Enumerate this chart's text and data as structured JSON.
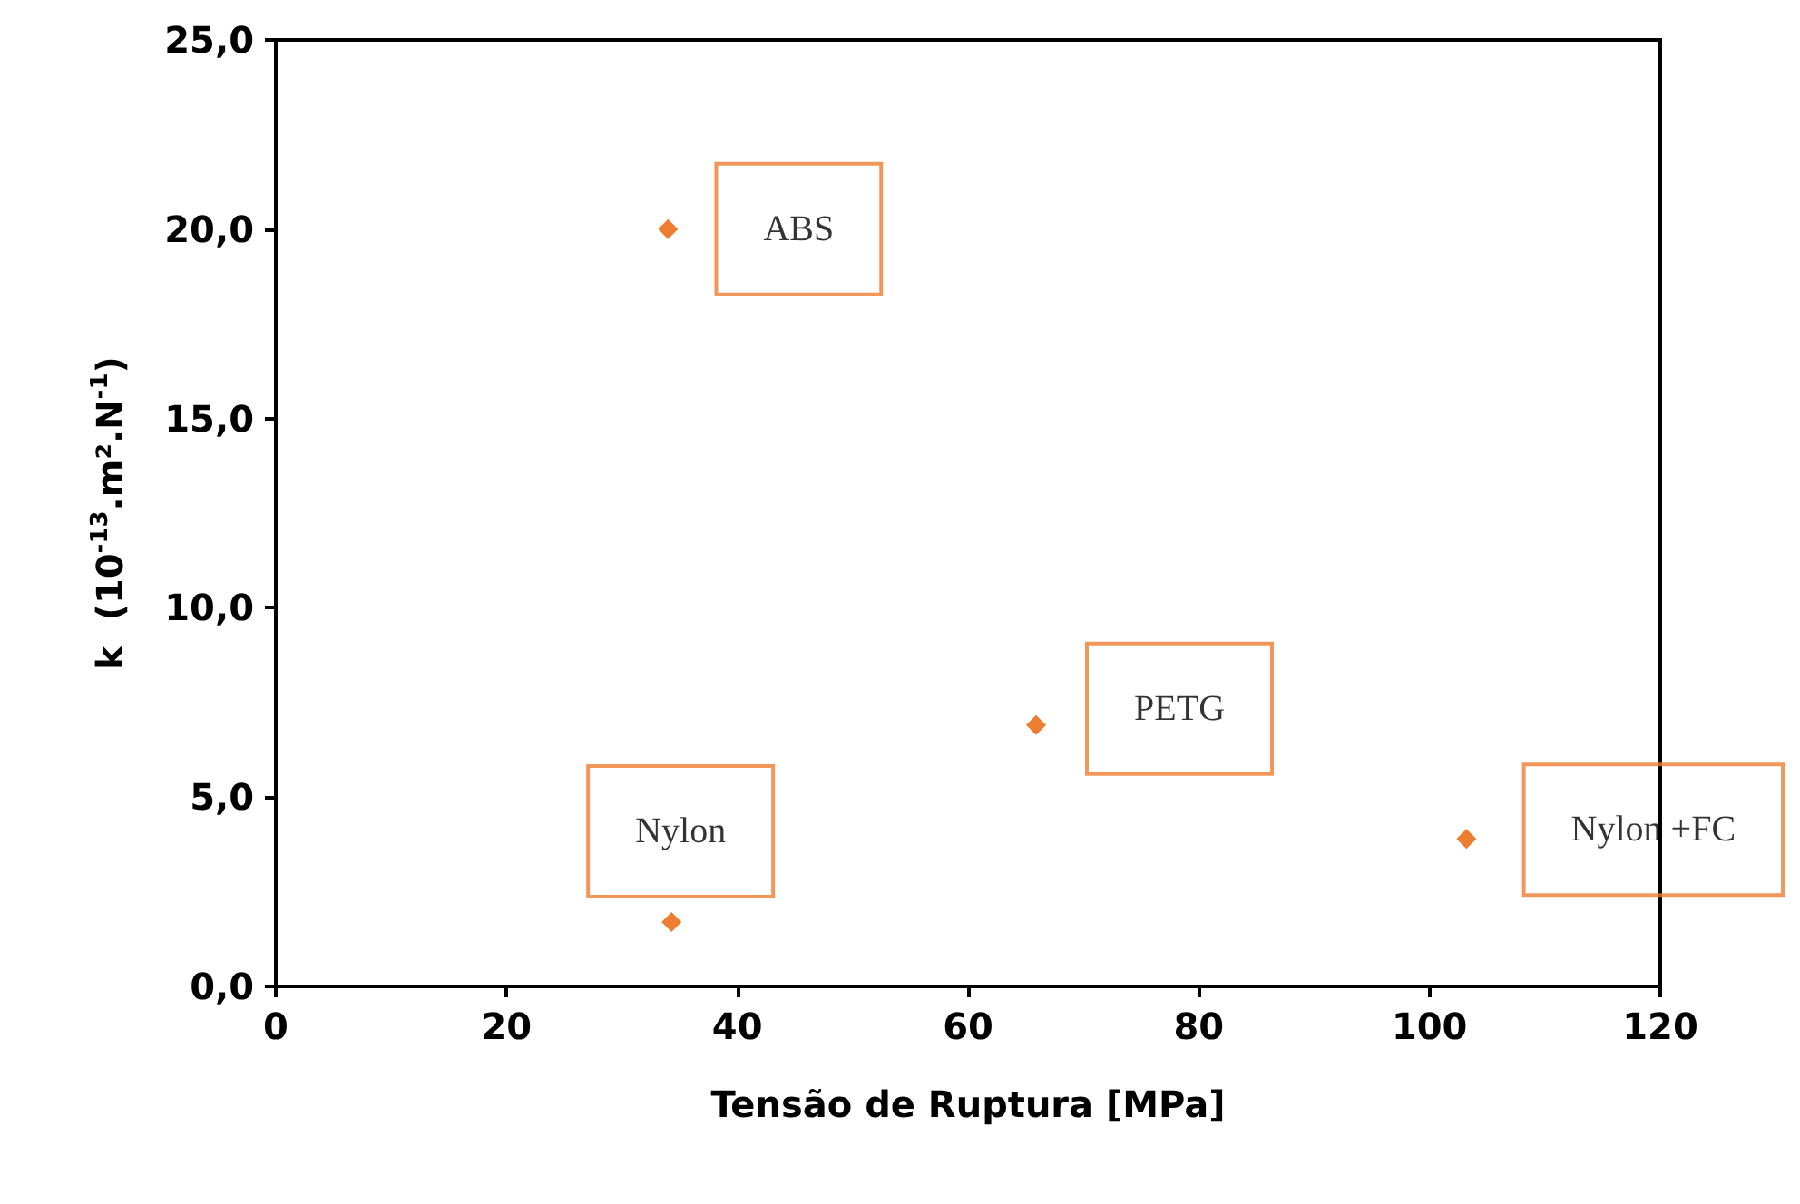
{
  "chart_data": {
    "type": "scatter",
    "xlabel": "Tensão de Ruptura [MPa]",
    "ylabel": "k  (10$^{-13}$.m².N$^{-1}$)",
    "x": [
      34.0,
      65.9,
      34.3,
      103.2
    ],
    "series": [
      {
        "color": "#ed7d31",
        "values": [
          20.0,
          6.9,
          1.7,
          3.9
        ]
      }
    ],
    "xlim": [
      0,
      120
    ],
    "xticks": [
      0,
      20,
      40,
      60,
      80,
      100,
      120
    ],
    "ylim": [
      0,
      25
    ],
    "yticks": [
      {
        "value": 0,
        "label": "0,0"
      },
      {
        "value": 5,
        "label": "5,0"
      },
      {
        "value": 10,
        "label": "10,0"
      },
      {
        "value": 15,
        "label": "15,0"
      },
      {
        "value": 20,
        "label": "20,0"
      },
      {
        "value": 25,
        "label": "25,0"
      }
    ],
    "annotations": [
      {
        "text": "ABS",
        "x": 34.0,
        "y": 20.0
      },
      {
        "text": "PETG",
        "x": 65.9,
        "y": 6.9
      },
      {
        "text": "Nylon",
        "x": 34.3,
        "y": 1.7
      },
      {
        "text": "Nylon +FC",
        "x": 103.2,
        "y": 3.9
      }
    ],
    "marker": "diamond",
    "grid": false
  }
}
